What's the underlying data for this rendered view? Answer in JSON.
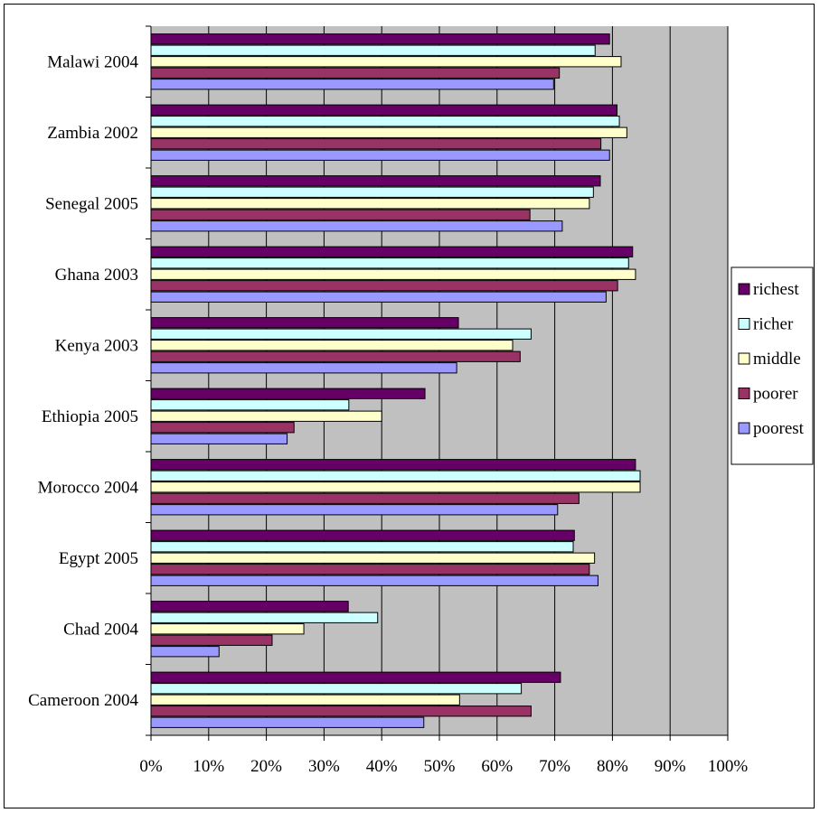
{
  "chart_data": {
    "type": "bar",
    "orientation": "horizontal",
    "categories": [
      "Malawi 2004",
      "Zambia 2002",
      "Senegal 2005",
      "Ghana 2003",
      "Kenya 2003",
      "Ethiopia 2005",
      "Morocco 2004",
      "Egypt 2005",
      "Chad 2004",
      "Cameroon 2004"
    ],
    "series": [
      {
        "name": "richest",
        "color": "#660066",
        "values": [
          79.5,
          80.8,
          77.9,
          83.5,
          53.3,
          47.5,
          84.0,
          73.4,
          34.2,
          71.0
        ]
      },
      {
        "name": "richer",
        "color": "#ccffff",
        "values": [
          77.0,
          81.2,
          76.7,
          82.8,
          65.9,
          34.3,
          84.8,
          73.2,
          39.3,
          64.2
        ]
      },
      {
        "name": "middle",
        "color": "#ffffcc",
        "values": [
          81.5,
          82.5,
          76.0,
          84.0,
          62.7,
          40.0,
          84.8,
          76.9,
          26.5,
          53.5
        ]
      },
      {
        "name": "poorer",
        "color": "#993366",
        "values": [
          70.8,
          78.0,
          65.7,
          80.9,
          64.0,
          24.8,
          74.2,
          76.0,
          21.0,
          65.9
        ]
      },
      {
        "name": "poorest",
        "color": "#9999ff",
        "values": [
          69.8,
          79.5,
          71.3,
          78.9,
          53.0,
          23.6,
          70.5,
          77.5,
          11.8,
          47.3
        ]
      }
    ],
    "x_ticks": [
      "0%",
      "10%",
      "20%",
      "30%",
      "40%",
      "50%",
      "60%",
      "70%",
      "80%",
      "90%",
      "100%"
    ],
    "xlim": [
      0,
      100
    ],
    "grid": true,
    "plot_background": "#c0c0c0",
    "legend_position": "right"
  }
}
